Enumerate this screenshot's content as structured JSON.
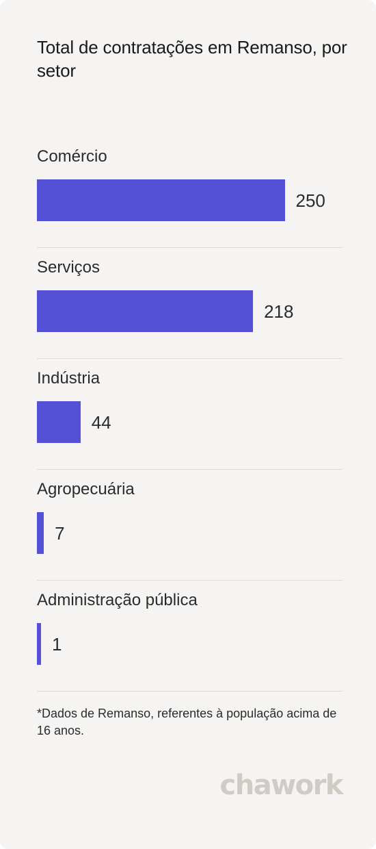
{
  "chart_data": {
    "type": "bar",
    "orientation": "horizontal",
    "title": "Total de contratações em Remanso, por setor",
    "categories": [
      "Comércio",
      "Serviços",
      "Indústria",
      "Agropecuária",
      "Administração pública"
    ],
    "values": [
      250,
      218,
      44,
      7,
      1
    ],
    "value_labels": [
      "250",
      "218",
      "44",
      "7",
      "1"
    ],
    "xlim": [
      0,
      300
    ],
    "grid": false,
    "legend": "none",
    "bar_color": "#5551d6"
  },
  "footnote": "*Dados de Remanso, referentes à população acima de 16 anos.",
  "brand": {
    "logo_text": "chawork",
    "logo_color": "#cfccc6"
  },
  "colors": {
    "background": "#f5f4f2",
    "bar": "#5551d6",
    "text": "#2b2b2b"
  }
}
